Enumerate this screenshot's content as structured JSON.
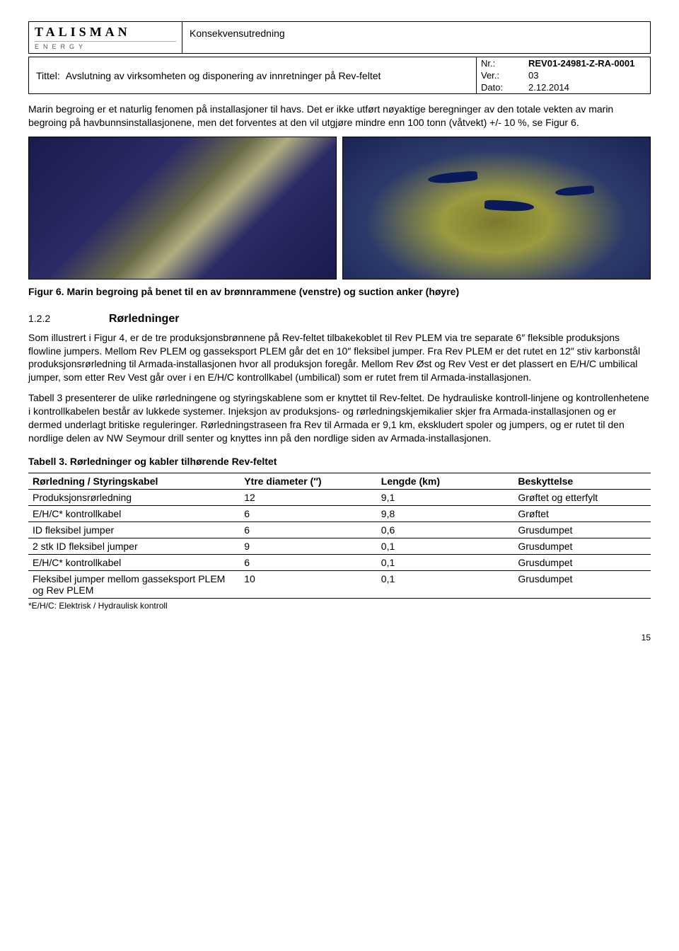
{
  "logo": {
    "name": "TALISMAN",
    "sub": "ENERGY"
  },
  "doc_type": "Konsekvensutredning",
  "title_label": "Tittel:",
  "title_text": "Avslutning av virksomheten og disponering av innretninger på Rev-feltet",
  "meta": {
    "nr_label": "Nr.:",
    "nr_value": "REV01-24981-Z-RA-0001",
    "ver_label": "Ver.:",
    "ver_value": "03",
    "dato_label": "Dato:",
    "dato_value": "2.12.2014"
  },
  "para_intro": "Marin begroing er et naturlig fenomen på installasjoner til havs. Det er ikke utført nøyaktige beregninger av den totale vekten av marin begroing på havbunnsinstallasjonene, men det forventes at den vil utgjøre mindre enn 100 tonn (våtvekt) +/- 10 %, se Figur 6.",
  "fig_caption": "Figur 6. Marin begroing på benet til en av brønnrammene (venstre) og suction anker (høyre)",
  "section": {
    "num": "1.2.2",
    "name": "Rørledninger"
  },
  "para_1": "Som illustrert i Figur 4, er de tre produksjonsbrønnene på Rev-feltet tilbakekoblet til Rev PLEM via tre separate 6″ fleksible produksjons flowline jumpers. Mellom Rev PLEM og gasseksport PLEM går det en 10″ fleksibel jumper. Fra Rev PLEM er det rutet en 12″ stiv karbonstål produksjonsrørledning til Armada-installasjonen hvor all produksjon foregår. Mellom Rev Øst og Rev Vest er det plassert en E/H/C umbilical jumper, som etter Rev Vest går over i en E/H/C kontrollkabel (umbilical) som er rutet frem til Armada-installasjonen.",
  "para_2": "Tabell 3 presenterer de ulike rørledningene og styringskablene som er knyttet til Rev-feltet. De hydrauliske kontroll-linjene og kontrollenhetene i kontrollkabelen består av lukkede systemer. Injeksjon av produksjons- og rørledningskjemikalier skjer fra Armada-installasjonen og er dermed underlagt britiske reguleringer. Rørledningstraseen fra Rev til Armada er 9,1 km, ekskludert spoler og jumpers, og er rutet til den nordlige delen av NW Seymour drill senter og knyttes inn på den nordlige siden av Armada-installasjonen.",
  "table": {
    "title": "Tabell 3. Rørledninger og kabler tilhørende Rev-feltet",
    "columns": [
      "Rørledning / Styringskabel",
      "Ytre diameter (″)",
      "Lengde (km)",
      "Beskyttelse"
    ],
    "col_widths": [
      "34%",
      "22%",
      "22%",
      "22%"
    ],
    "rows": [
      [
        "Produksjonsrørledning",
        "12",
        "9,1",
        "Grøftet og etterfylt"
      ],
      [
        "E/H/C* kontrollkabel",
        "6",
        "9,8",
        "Grøftet"
      ],
      [
        "ID fleksibel jumper",
        "6",
        "0,6",
        "Grusdumpet"
      ],
      [
        "2 stk ID fleksibel jumper",
        "9",
        "0,1",
        "Grusdumpet"
      ],
      [
        "E/H/C* kontrollkabel",
        "6",
        "0,1",
        "Grusdumpet"
      ],
      [
        "Fleksibel jumper mellom gasseksport PLEM og Rev PLEM",
        "10",
        "0,1",
        "Grusdumpet"
      ]
    ],
    "footnote": "*E/H/C: Elektrisk / Hydraulisk kontroll"
  },
  "page_number": "15"
}
